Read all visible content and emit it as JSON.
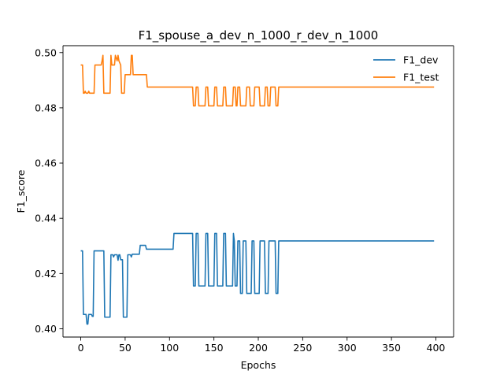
{
  "chart_data": {
    "type": "line",
    "title": "F1_spouse_a_dev_n_1000_r_dev_n_1000",
    "xlabel": "Epochs",
    "ylabel": "F1_score",
    "xlim": [
      -20,
      420
    ],
    "ylim": [
      0.397,
      0.5025
    ],
    "xticks": [
      0,
      50,
      100,
      150,
      200,
      250,
      300,
      350,
      400
    ],
    "xtick_labels": [
      "0",
      "50",
      "100",
      "150",
      "200",
      "250",
      "300",
      "350",
      "400"
    ],
    "yticks": [
      0.4,
      0.42,
      0.44,
      0.46,
      0.48,
      0.5
    ],
    "ytick_labels": [
      "0.40",
      "0.42",
      "0.44",
      "0.46",
      "0.48",
      "0.50"
    ],
    "grid": false,
    "legend_position": "top-right",
    "series": [
      {
        "name": "F1_dev",
        "color": "#1f77b4",
        "points": [
          [
            0,
            0.4282
          ],
          [
            2,
            0.4282
          ],
          [
            3,
            0.4052
          ],
          [
            6,
            0.4052
          ],
          [
            7,
            0.4017
          ],
          [
            8,
            0.4017
          ],
          [
            9,
            0.4052
          ],
          [
            12,
            0.4052
          ],
          [
            13,
            0.4045
          ],
          [
            14,
            0.4045
          ],
          [
            15,
            0.4282
          ],
          [
            26,
            0.4282
          ],
          [
            27,
            0.4042
          ],
          [
            33,
            0.4042
          ],
          [
            34,
            0.4268
          ],
          [
            36,
            0.4268
          ],
          [
            37,
            0.426
          ],
          [
            38,
            0.4268
          ],
          [
            41,
            0.4268
          ],
          [
            42,
            0.4248
          ],
          [
            43,
            0.4268
          ],
          [
            44,
            0.4268
          ],
          [
            45,
            0.425
          ],
          [
            47,
            0.425
          ],
          [
            48,
            0.4042
          ],
          [
            52,
            0.4042
          ],
          [
            53,
            0.4268
          ],
          [
            56,
            0.4268
          ],
          [
            57,
            0.426
          ],
          [
            58,
            0.427
          ],
          [
            66,
            0.427
          ],
          [
            67,
            0.4302
          ],
          [
            73,
            0.4302
          ],
          [
            74,
            0.4288
          ],
          [
            104,
            0.4288
          ],
          [
            105,
            0.4345
          ],
          [
            126,
            0.4345
          ],
          [
            127,
            0.4155
          ],
          [
            129,
            0.4155
          ],
          [
            130,
            0.4345
          ],
          [
            132,
            0.4345
          ],
          [
            133,
            0.4155
          ],
          [
            140,
            0.4155
          ],
          [
            141,
            0.4345
          ],
          [
            143,
            0.4345
          ],
          [
            144,
            0.4155
          ],
          [
            150,
            0.4155
          ],
          [
            151,
            0.4345
          ],
          [
            153,
            0.4345
          ],
          [
            154,
            0.4155
          ],
          [
            160,
            0.4155
          ],
          [
            161,
            0.4345
          ],
          [
            163,
            0.4345
          ],
          [
            164,
            0.4155
          ],
          [
            171,
            0.4155
          ],
          [
            172,
            0.4345
          ],
          [
            173,
            0.4318
          ],
          [
            174,
            0.4155
          ],
          [
            176,
            0.4155
          ],
          [
            177,
            0.4318
          ],
          [
            179,
            0.4318
          ],
          [
            180,
            0.4128
          ],
          [
            182,
            0.4128
          ],
          [
            183,
            0.4318
          ],
          [
            186,
            0.4318
          ],
          [
            187,
            0.4128
          ],
          [
            192,
            0.4128
          ],
          [
            193,
            0.4318
          ],
          [
            195,
            0.4318
          ],
          [
            196,
            0.4128
          ],
          [
            201,
            0.4128
          ],
          [
            202,
            0.4318
          ],
          [
            207,
            0.4318
          ],
          [
            208,
            0.4128
          ],
          [
            211,
            0.4128
          ],
          [
            212,
            0.4318
          ],
          [
            219,
            0.4318
          ],
          [
            220,
            0.4128
          ],
          [
            222,
            0.4128
          ],
          [
            223,
            0.4318
          ],
          [
            398,
            0.4318
          ]
        ]
      },
      {
        "name": "F1_test",
        "color": "#ff7f0e",
        "points": [
          [
            0,
            0.4955
          ],
          [
            2,
            0.4955
          ],
          [
            3,
            0.4853
          ],
          [
            4,
            0.4853
          ],
          [
            5,
            0.486
          ],
          [
            6,
            0.4853
          ],
          [
            8,
            0.4853
          ],
          [
            9,
            0.486
          ],
          [
            10,
            0.4853
          ],
          [
            15,
            0.4853
          ],
          [
            16,
            0.4955
          ],
          [
            23,
            0.4955
          ],
          [
            24,
            0.497
          ],
          [
            25,
            0.499
          ],
          [
            26,
            0.4853
          ],
          [
            33,
            0.4853
          ],
          [
            34,
            0.499
          ],
          [
            35,
            0.4955
          ],
          [
            38,
            0.4955
          ],
          [
            39,
            0.499
          ],
          [
            40,
            0.498
          ],
          [
            41,
            0.497
          ],
          [
            42,
            0.499
          ],
          [
            43,
            0.497
          ],
          [
            45,
            0.4955
          ],
          [
            46,
            0.4853
          ],
          [
            49,
            0.4853
          ],
          [
            50,
            0.492
          ],
          [
            56,
            0.492
          ],
          [
            57,
            0.499
          ],
          [
            58,
            0.499
          ],
          [
            59,
            0.492
          ],
          [
            74,
            0.492
          ],
          [
            75,
            0.4875
          ],
          [
            126,
            0.4875
          ],
          [
            127,
            0.4807
          ],
          [
            129,
            0.4807
          ],
          [
            130,
            0.4875
          ],
          [
            132,
            0.4875
          ],
          [
            133,
            0.4807
          ],
          [
            140,
            0.4807
          ],
          [
            141,
            0.4875
          ],
          [
            143,
            0.4875
          ],
          [
            144,
            0.4807
          ],
          [
            150,
            0.4807
          ],
          [
            151,
            0.4875
          ],
          [
            153,
            0.4875
          ],
          [
            154,
            0.4807
          ],
          [
            160,
            0.4807
          ],
          [
            161,
            0.4875
          ],
          [
            163,
            0.4875
          ],
          [
            164,
            0.4807
          ],
          [
            171,
            0.4807
          ],
          [
            172,
            0.4875
          ],
          [
            174,
            0.4875
          ],
          [
            175,
            0.4807
          ],
          [
            176,
            0.4807
          ],
          [
            177,
            0.4875
          ],
          [
            179,
            0.4875
          ],
          [
            180,
            0.4807
          ],
          [
            186,
            0.4807
          ],
          [
            187,
            0.4875
          ],
          [
            190,
            0.4875
          ],
          [
            191,
            0.4807
          ],
          [
            195,
            0.4807
          ],
          [
            196,
            0.4875
          ],
          [
            201,
            0.4875
          ],
          [
            202,
            0.4807
          ],
          [
            207,
            0.4807
          ],
          [
            208,
            0.4875
          ],
          [
            210,
            0.4875
          ],
          [
            211,
            0.4807
          ],
          [
            213,
            0.4807
          ],
          [
            214,
            0.4875
          ],
          [
            219,
            0.4875
          ],
          [
            220,
            0.4807
          ],
          [
            222,
            0.4807
          ],
          [
            223,
            0.4875
          ],
          [
            398,
            0.4875
          ]
        ]
      }
    ]
  }
}
